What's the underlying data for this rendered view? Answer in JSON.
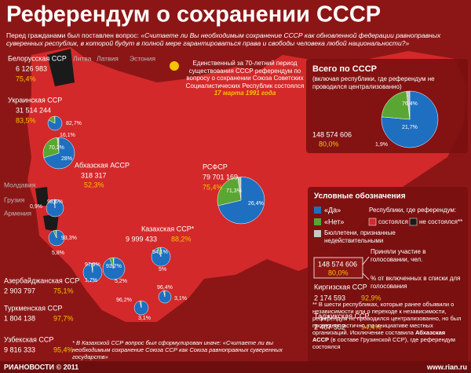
{
  "header": {
    "title": "Референдум о сохранении СССР",
    "question_intro": "Перед гражданами был поставлен вопрос:",
    "question": "«Считаете ли Вы необходимым сохранение СССР как обновленной федерации равноправных суверенных республик, в которой будут в полной мере гарантироваться права и свободы человека любой национальности?»"
  },
  "intro_note": {
    "text": "Единственный за 70-летний период существования СССР референдум по вопросу о сохранении Союза Советских Социалистических Республик состоялся",
    "date": "17 марта 1991 года"
  },
  "not_held": [
    "Литва",
    "Латвия",
    "Эстония",
    "Молдавия",
    "Грузия",
    "Армения"
  ],
  "regions": [
    {
      "name": "Белорусская ССР",
      "voters": "6 126 983",
      "turnout": "75,4%",
      "yes": 82.7,
      "yes_label": "82,7%",
      "no": 16.1,
      "no_label": "16,1%"
    },
    {
      "name": "Украинская ССР",
      "voters": "31 514 244",
      "turnout": "83,5%",
      "yes": 70.2,
      "yes_label": "70,2%",
      "no": 28,
      "no_label": "28%"
    },
    {
      "name": "Абхазская АССР",
      "voters": "318 317",
      "turnout": "52,3%",
      "yes": 98.6,
      "yes_label": "98,6%",
      "no": 0.9,
      "no_label": "0,9%"
    },
    {
      "name": "Азербайджанская ССР",
      "voters": "2 903 797",
      "turnout": "75,1%",
      "yes": 93.3,
      "yes_label": "93,3%",
      "no": 5.8,
      "no_label": "5,8%"
    },
    {
      "name": "Туркменская ССР",
      "voters": "1 804 138",
      "turnout": "97,7%",
      "yes": 97.9,
      "yes_label": "97,9%",
      "no": 1.7,
      "no_label": "1,7%"
    },
    {
      "name": "Узбекская ССР",
      "voters": "9 816 333",
      "turnout": "95,4%",
      "yes": 93.7,
      "yes_label": "93,7%",
      "no": 5.2,
      "no_label": "5,2%"
    },
    {
      "name": "Казахская ССР*",
      "voters": "9 999 433",
      "turnout": "88,2%",
      "yes": 94.1,
      "yes_label": "94,1%",
      "no": 5,
      "no_label": "5%"
    },
    {
      "name": "Киргизская ССР",
      "voters": "2 174 593",
      "turnout": "92,9%",
      "yes": 96.4,
      "yes_label": "96,4%",
      "no": 3.1,
      "no_label": "3,1%"
    },
    {
      "name": "Таджикская ССР",
      "voters": "2 407 552",
      "turnout": "94,4%",
      "yes": 96.2,
      "yes_label": "96,2%",
      "no": 3.1,
      "no_label": "3,1%"
    },
    {
      "name": "РСФСР",
      "voters": "79 701 169",
      "turnout": "75,4%",
      "yes": 71.3,
      "yes_label": "71,3%",
      "no": 26.4,
      "no_label": "26,4%"
    }
  ],
  "total": {
    "title": "Всего по СССР",
    "subtitle": "(включая республики, где референдум не проводился централизованно)",
    "voters": "148 574 606",
    "turnout": "80,0%",
    "yes": 76.4,
    "yes_label": "76,4%",
    "no": 21.7,
    "no_label": "21,7%",
    "invalid": 1.9,
    "invalid_label": "1,9%"
  },
  "legend": {
    "title": "Условные обозначения",
    "yes": "«Да»",
    "no": "«Нет»",
    "invalid": "Бюллетени, признанные недействительными",
    "republics": "Республики, где референдум:",
    "held": "состоялся",
    "not_held": "не состоялся**",
    "sample_voters": "148 574 606",
    "sample_turnout": "80,0%",
    "participated": "Приняли участие в голосовании, чел.",
    "percent": "% от включенных в списки для голосования"
  },
  "footnotes": {
    "kazakh": "* В Казахской ССР вопрос был сформулирован иначе: «Считаете ли вы необходимым сохранение Союза ССР как Союза равноправных суверенных государств»",
    "main_start": "** В шести республиках, которые ранее объявили о независимости или о переходе к независимости, референдум не проводился централизованно, но был проведен частично, по инициативе местных организаций. Исключение составила",
    "main_bold": "Абхазская АССР",
    "main_end": "(в составе Грузинской ССР), где референдум состоялся"
  },
  "footer": {
    "brand": "РИАНОВОСТИ © 2011",
    "url": "www.rian.ru"
  }
}
